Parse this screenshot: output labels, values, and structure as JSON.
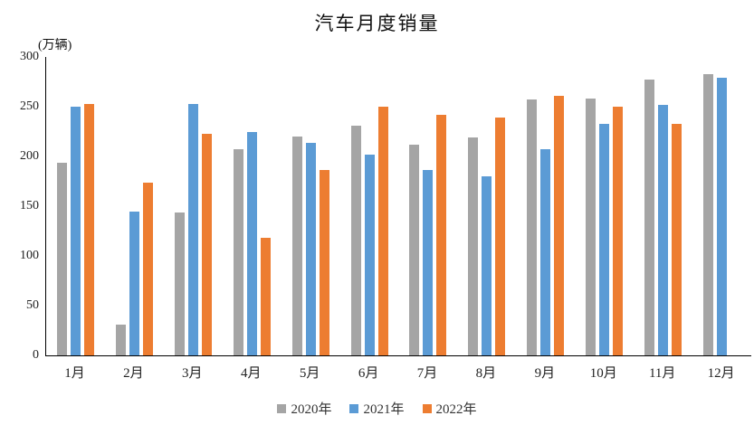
{
  "chart_data": {
    "type": "bar",
    "title": "汽车月度销量",
    "ylabel": "(万辆)",
    "xlabel": "",
    "categories": [
      "1月",
      "2月",
      "3月",
      "4月",
      "5月",
      "6月",
      "7月",
      "8月",
      "9月",
      "10月",
      "11月",
      "12月"
    ],
    "series": [
      {
        "name": "2020年",
        "color": "#A5A5A5",
        "values": [
          194,
          31,
          144,
          207,
          220,
          231,
          212,
          219,
          257,
          258,
          277,
          283
        ]
      },
      {
        "name": "2021年",
        "color": "#5B9BD5",
        "values": [
          250,
          145,
          253,
          225,
          214,
          202,
          186,
          180,
          207,
          233,
          252,
          279
        ]
      },
      {
        "name": "2022年",
        "color": "#ED7D31",
        "values": [
          253,
          174,
          223,
          118,
          186,
          250,
          242,
          239,
          261,
          250,
          233,
          null
        ]
      }
    ],
    "ylim": [
      0,
      300
    ],
    "yticks": [
      0,
      50,
      100,
      150,
      200,
      250,
      300
    ],
    "grid": false,
    "legend_position": "bottom",
    "axis_line_color": "#000000",
    "text_color": "#222222"
  }
}
